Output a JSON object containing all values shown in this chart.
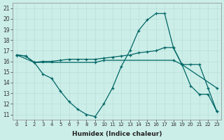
{
  "xlabel": "Humidex (Indice chaleur)",
  "bg_color": "#cceee8",
  "line_color": "#006666",
  "grid_color": "#b8ddd8",
  "xlim": [
    -0.5,
    23.5
  ],
  "ylim": [
    10.5,
    21.5
  ],
  "xticks": [
    0,
    1,
    2,
    3,
    4,
    5,
    6,
    7,
    8,
    9,
    10,
    11,
    12,
    13,
    14,
    15,
    16,
    17,
    18,
    19,
    20,
    21,
    22,
    23
  ],
  "yticks": [
    11,
    12,
    13,
    14,
    15,
    16,
    17,
    18,
    19,
    20,
    21
  ],
  "line1_x": [
    0,
    1,
    2,
    3,
    4,
    5,
    6,
    7,
    8,
    9,
    10,
    11,
    12,
    13,
    14,
    15,
    16,
    17,
    18,
    19,
    20,
    21,
    22,
    23
  ],
  "line1_y": [
    16.6,
    16.5,
    15.9,
    16.0,
    16.0,
    16.1,
    16.2,
    16.2,
    16.2,
    16.2,
    16.3,
    16.4,
    16.5,
    16.6,
    16.8,
    16.9,
    17.0,
    17.3,
    17.3,
    15.7,
    15.7,
    15.7,
    13.5,
    11.3
  ],
  "line2_x": [
    0,
    2,
    9,
    10,
    18,
    19,
    23
  ],
  "line2_y": [
    16.6,
    15.9,
    15.9,
    16.1,
    16.1,
    15.7,
    13.5
  ],
  "line3_x": [
    0,
    1,
    2,
    3,
    4,
    5,
    6,
    7,
    8,
    9,
    10,
    11,
    12,
    13,
    14,
    15,
    16,
    17,
    18,
    19,
    20,
    21,
    22,
    23
  ],
  "line3_y": [
    16.6,
    16.5,
    15.9,
    14.8,
    14.4,
    13.2,
    12.2,
    11.5,
    11.0,
    10.8,
    12.0,
    13.5,
    15.5,
    17.0,
    18.9,
    19.9,
    20.5,
    20.5,
    17.3,
    15.7,
    13.7,
    12.9,
    12.9,
    11.3
  ]
}
